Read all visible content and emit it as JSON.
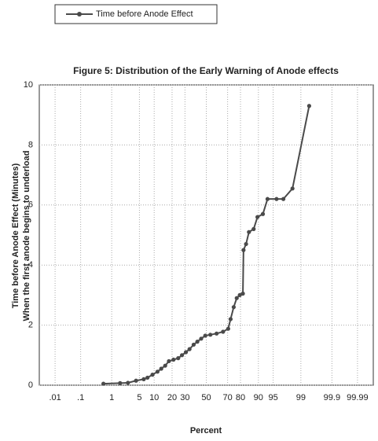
{
  "chart_data": {
    "type": "line",
    "title": "Figure 5: Distribution of the Early Warning of Anode effects",
    "x_label": "Percent",
    "y_label": [
      "Time before Anode Effect (Minutes)",
      "When the first anode begins to underload"
    ],
    "x_scale": "probability",
    "x": [
      0.57,
      1.7,
      2.7,
      4.2,
      6.2,
      7.4,
      9.3,
      11.5,
      13.4,
      15.6,
      17.9,
      21,
      24.5,
      27.5,
      30.8,
      34,
      37.8,
      41.3,
      45,
      49,
      54,
      60,
      66,
      70.5,
      72.5,
      75,
      77.3,
      79.5,
      81.6,
      82,
      83.6,
      85.3,
      87.8,
      89.6,
      91.8,
      93.4,
      95.8,
      97.1,
      98.3,
      99.43
    ],
    "series": [
      {
        "name": "Time before Anode Effect",
        "color": "#4a4a4a",
        "values": [
          0.05,
          0.07,
          0.08,
          0.15,
          0.2,
          0.25,
          0.35,
          0.45,
          0.55,
          0.65,
          0.8,
          0.85,
          0.9,
          1.0,
          1.1,
          1.2,
          1.35,
          1.45,
          1.55,
          1.65,
          1.68,
          1.72,
          1.78,
          1.88,
          2.2,
          2.6,
          2.9,
          3.0,
          3.05,
          4.5,
          4.7,
          5.1,
          5.2,
          5.6,
          5.7,
          6.2,
          6.2,
          6.2,
          6.55,
          9.3
        ]
      }
    ],
    "xlim": [
      0.002,
      99.998
    ],
    "xticks": [
      {
        "value": 0.01,
        "label": ".01"
      },
      {
        "value": 0.1,
        "label": ".1"
      },
      1,
      5,
      10,
      20,
      30,
      50,
      70,
      80,
      90,
      95,
      99,
      99.9,
      99.99
    ],
    "ylim": [
      0,
      10
    ],
    "yticks": [
      0,
      2,
      4,
      6,
      8,
      10
    ],
    "grid": true,
    "legend": "top-left"
  }
}
